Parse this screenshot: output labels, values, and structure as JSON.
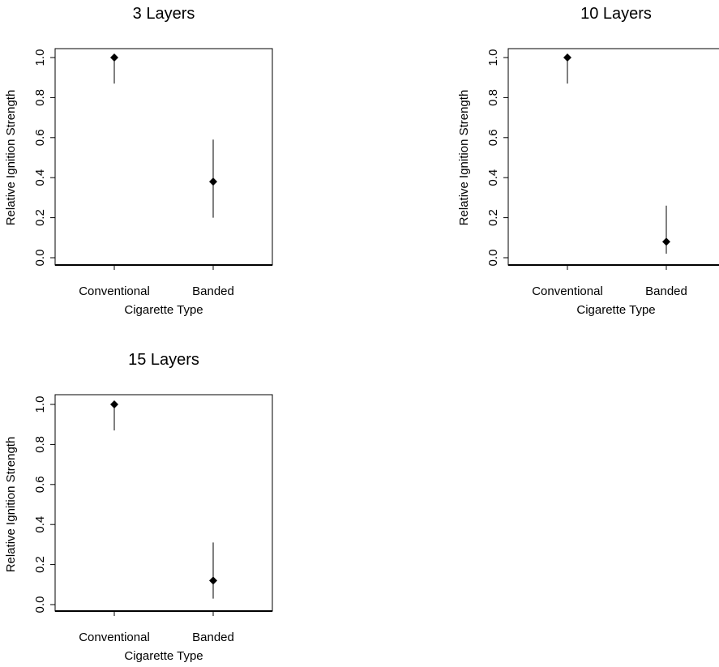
{
  "chart_data": [
    {
      "type": "scatter",
      "title": "3 Layers",
      "xlabel": "Cigarette Type",
      "ylabel": "Relative Ignition Strength",
      "categories": [
        "Conventional",
        "Banded"
      ],
      "points": [
        {
          "category": "Conventional",
          "value": 1.0,
          "lower": 0.87,
          "upper": 1.0
        },
        {
          "category": "Banded",
          "value": 0.38,
          "lower": 0.2,
          "upper": 0.59
        }
      ],
      "yticks": [
        "0.0",
        "0.2",
        "0.4",
        "0.6",
        "0.8",
        "1.0"
      ],
      "ylim": [
        0,
        1
      ],
      "grid": false,
      "error_bars": true
    },
    {
      "type": "scatter",
      "title": "10 Layers",
      "xlabel": "Cigarette Type",
      "ylabel": "Relative Ignition Strength",
      "categories": [
        "Conventional",
        "Banded"
      ],
      "points": [
        {
          "category": "Conventional",
          "value": 1.0,
          "lower": 0.87,
          "upper": 1.0
        },
        {
          "category": "Banded",
          "value": 0.08,
          "lower": 0.02,
          "upper": 0.26
        }
      ],
      "yticks": [
        "0.0",
        "0.2",
        "0.4",
        "0.6",
        "0.8",
        "1.0"
      ],
      "ylim": [
        0,
        1
      ],
      "grid": false,
      "error_bars": true
    },
    {
      "type": "scatter",
      "title": "15 Layers",
      "xlabel": "Cigarette Type",
      "ylabel": "Relative Ignition Strength",
      "categories": [
        "Conventional",
        "Banded"
      ],
      "points": [
        {
          "category": "Conventional",
          "value": 1.0,
          "lower": 0.87,
          "upper": 1.0
        },
        {
          "category": "Banded",
          "value": 0.12,
          "lower": 0.03,
          "upper": 0.31
        }
      ],
      "yticks": [
        "0.0",
        "0.2",
        "0.4",
        "0.6",
        "0.8",
        "1.0"
      ],
      "ylim": [
        0,
        1
      ],
      "grid": false,
      "error_bars": true
    }
  ]
}
